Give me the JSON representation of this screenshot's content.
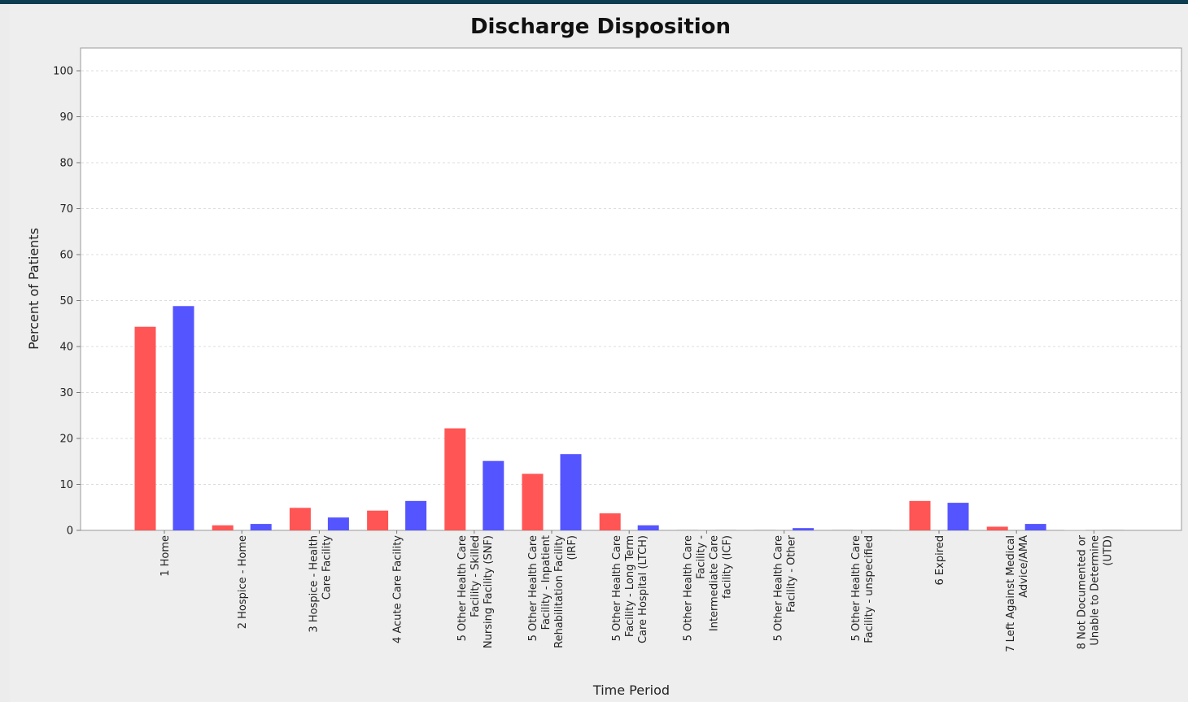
{
  "chart_data": {
    "type": "bar",
    "title": "Discharge Disposition",
    "xlabel": "Time Period",
    "ylabel": "Percent of Patients",
    "ylim": [
      0,
      100
    ],
    "yticks": [
      0,
      10,
      20,
      30,
      40,
      50,
      60,
      70,
      80,
      90,
      100
    ],
    "grid": true,
    "categories": [
      [
        "1 Home"
      ],
      [
        "2 Hospice - Home"
      ],
      [
        "3 Hospice - Health",
        "Care Facility"
      ],
      [
        "4 Acute Care Facility"
      ],
      [
        "5 Other Health Care",
        "Facility - Skilled",
        "Nursing Facility (SNF)"
      ],
      [
        "5 Other Health Care",
        "Facility - Inpatient",
        "Rehabilitation Facility",
        "(IRF)"
      ],
      [
        "5 Other Health Care",
        "Facility - Long Term",
        "Care Hospital (LTCH)"
      ],
      [
        "5 Other Health Care",
        "Facility -",
        "Intermediate Care",
        "facility (ICF)"
      ],
      [
        "5 Other Health Care",
        "Facility - Other"
      ],
      [
        "5 Other Health Care",
        "Facility - unspecified"
      ],
      [
        "6 Expired"
      ],
      [
        "7 Left Against Medical",
        "Advice/AMA"
      ],
      [
        "8 Not Documented or",
        "Unable to Determine",
        "(UTD)"
      ]
    ],
    "series": [
      {
        "color": "#ff5555",
        "values": [
          44.3,
          1.1,
          4.9,
          4.3,
          22.2,
          12.3,
          3.7,
          0.2,
          0.2,
          0.2,
          6.4,
          0.8,
          0
        ]
      },
      {
        "color": "#5555ff",
        "values": [
          48.8,
          1.4,
          2.8,
          6.4,
          15.1,
          16.6,
          1.1,
          0.2,
          0.5,
          0.2,
          6.0,
          1.4,
          0.2
        ]
      }
    ]
  }
}
